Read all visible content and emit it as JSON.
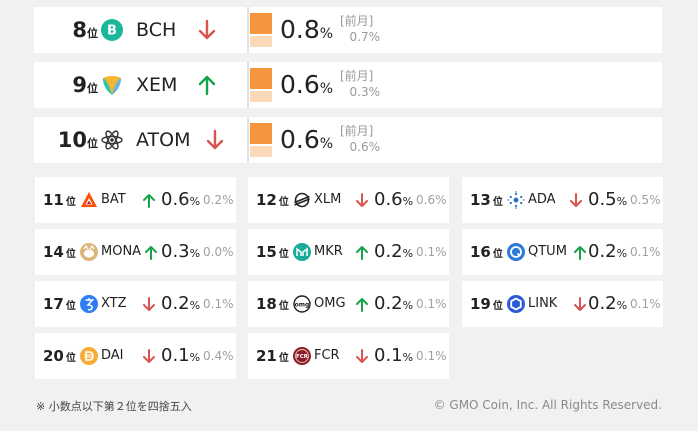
{
  "unit_rank": "位",
  "unit_pct": "%",
  "prev_label": "[前月]",
  "big_rows": [
    {
      "rank": "8",
      "symbol": "BCH",
      "icon": "bch-icon",
      "trend": "down",
      "value": "0.8",
      "prev": "0.7%"
    },
    {
      "rank": "9",
      "symbol": "XEM",
      "icon": "xem-icon",
      "trend": "up",
      "value": "0.6",
      "prev": "0.3%"
    },
    {
      "rank": "10",
      "symbol": "ATOM",
      "icon": "atom-icon",
      "trend": "down",
      "value": "0.6",
      "prev": "0.6%"
    }
  ],
  "small_rows": [
    {
      "rank": "11",
      "symbol": "BAT",
      "icon": "bat-icon",
      "trend": "up",
      "value": "0.6",
      "prev": "0.2%"
    },
    {
      "rank": "12",
      "symbol": "XLM",
      "icon": "xlm-icon",
      "trend": "down",
      "value": "0.6",
      "prev": "0.6%"
    },
    {
      "rank": "13",
      "symbol": "ADA",
      "icon": "ada-icon",
      "trend": "down",
      "value": "0.5",
      "prev": "0.5%"
    },
    {
      "rank": "14",
      "symbol": "MONA",
      "icon": "mona-icon",
      "trend": "up",
      "value": "0.3",
      "prev": "0.0%"
    },
    {
      "rank": "15",
      "symbol": "MKR",
      "icon": "mkr-icon",
      "trend": "up",
      "value": "0.2",
      "prev": "0.1%"
    },
    {
      "rank": "16",
      "symbol": "QTUM",
      "icon": "qtum-icon",
      "trend": "up",
      "value": "0.2",
      "prev": "0.1%"
    },
    {
      "rank": "17",
      "symbol": "XTZ",
      "icon": "xtz-icon",
      "trend": "down",
      "value": "0.2",
      "prev": "0.1%"
    },
    {
      "rank": "18",
      "symbol": "OMG",
      "icon": "omg-icon",
      "trend": "up",
      "value": "0.2",
      "prev": "0.1%"
    },
    {
      "rank": "19",
      "symbol": "LINK",
      "icon": "link-icon",
      "trend": "down",
      "value": "0.2",
      "prev": "0.1%"
    },
    {
      "rank": "20",
      "symbol": "DAI",
      "icon": "dai-icon",
      "trend": "down",
      "value": "0.1",
      "prev": "0.4%"
    },
    {
      "rank": "21",
      "symbol": "FCR",
      "icon": "fcr-icon",
      "trend": "down",
      "value": "0.1",
      "prev": "0.1%"
    }
  ],
  "colors": {
    "up": "#16a34a",
    "down": "#d9534f",
    "bar_current": "#f7953f",
    "bar_previous": "#fcd9b9"
  },
  "footnote": "※ 小数点以下第２位を四捨五入",
  "copyright": "© GMO Coin, Inc. All Rights Reserved."
}
